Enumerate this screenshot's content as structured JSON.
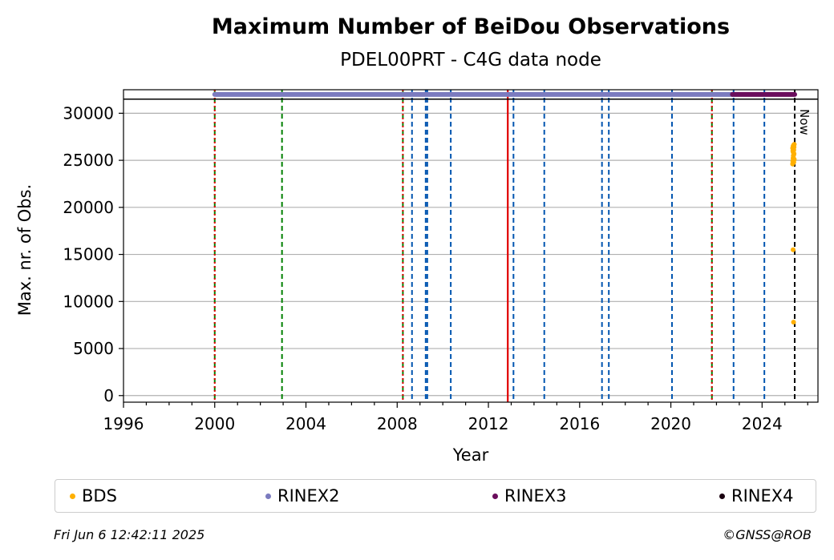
{
  "chart_data": {
    "type": "scatter",
    "title": "Maximum Number of BeiDou Observations",
    "subtitle": "PDEL00PRT - C4G data node",
    "xlabel": "Year",
    "ylabel": "Max. nr. of Obs.",
    "xlim": [
      1996.0,
      2026.45
    ],
    "ylim": [
      -700,
      32500
    ],
    "x_ticks": [
      1996,
      2000,
      2004,
      2008,
      2012,
      2016,
      2020,
      2024
    ],
    "y_ticks": [
      0,
      5000,
      10000,
      15000,
      20000,
      25000,
      30000
    ],
    "grid": "horizontal",
    "reference_line_y": 31500,
    "now_label": "Now",
    "now_x": 2025.43,
    "series": [
      {
        "name": "BDS",
        "color": "#ffb000",
        "x": [
          2025.34,
          2025.35,
          2025.36,
          2025.37,
          2025.38,
          2025.39,
          2025.4,
          2025.41,
          2025.35,
          2025.37,
          2025.39,
          2025.36,
          2025.38,
          2025.4,
          2025.34,
          2025.36,
          2025.38,
          2025.41,
          2025.35,
          2025.37,
          2025.39,
          2025.36,
          2025.38
        ],
        "y": [
          24600,
          24900,
          25200,
          25500,
          25800,
          26100,
          26400,
          26700,
          26000,
          25300,
          24800,
          26500,
          25000,
          25700,
          26300,
          25900,
          26600,
          25100,
          24700,
          26200,
          25600,
          15500,
          7800
        ]
      },
      {
        "name": "RINEX2",
        "color": "#7b7bbf",
        "x_range": [
          2000.0,
          2022.7
        ],
        "y": 32000
      },
      {
        "name": "RINEX3",
        "color": "#6a0d5c",
        "x_range": [
          2022.7,
          2025.43
        ],
        "y": 32000
      },
      {
        "name": "RINEX4",
        "color": "#1a0010",
        "x_range": [],
        "y": 32000
      }
    ],
    "vlines": {
      "red_solid": [
        2012.85
      ],
      "red_dotted": [
        2000.0,
        2008.25,
        2021.8
      ],
      "green_dashed": [
        2000.0,
        2002.95,
        2008.25,
        2021.8
      ],
      "blue_dashed": [
        2008.65,
        2009.25,
        2009.32,
        2010.35,
        2013.1,
        2014.45,
        2016.98,
        2017.28,
        2020.05,
        2022.75,
        2024.1
      ],
      "black_dashed": [
        2025.43
      ]
    },
    "colors": {
      "red": "#e00000",
      "green": "#008000",
      "blue": "#0055b0",
      "black": "#000000",
      "grid": "#b0b0b0"
    }
  },
  "legend": {
    "items": [
      {
        "label": "BDS",
        "color": "#ffb000"
      },
      {
        "label": "RINEX2",
        "color": "#7b7bbf"
      },
      {
        "label": "RINEX3",
        "color": "#6a0d5c"
      },
      {
        "label": "RINEX4",
        "color": "#1a0010"
      }
    ]
  },
  "footer": {
    "timestamp": "Fri Jun  6 12:42:11 2025",
    "copyright": "©GNSS@ROB"
  }
}
